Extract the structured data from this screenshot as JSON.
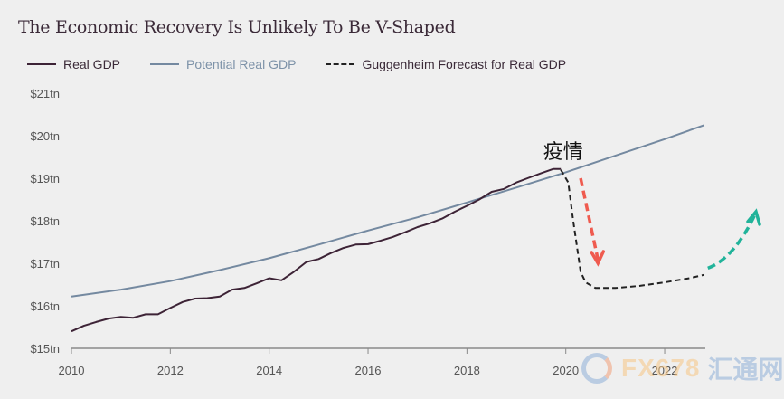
{
  "chart_data": {
    "type": "line",
    "title": "The Economic Recovery Is Unlikely To Be V-Shaped",
    "xlabel": "",
    "ylabel": "",
    "xlim": [
      2010,
      2023.3
    ],
    "ylim": [
      15,
      21
    ],
    "x_ticks": [
      2010,
      2012,
      2014,
      2016,
      2018,
      2020,
      2022
    ],
    "x_tick_labels": [
      "2010",
      "2012",
      "2014",
      "2016",
      "2018",
      "2020",
      "2022"
    ],
    "y_ticks": [
      15,
      16,
      17,
      18,
      19,
      20,
      21
    ],
    "y_tick_labels": [
      "$15tn",
      "$16tn",
      "$17tn",
      "$18tn",
      "$19tn",
      "$20tn",
      "$21tn"
    ],
    "grid": false,
    "legend_position": "top-left",
    "series": [
      {
        "name": "Real GDP",
        "style": "solid",
        "color": "#3d2336",
        "x": [
          2010.0,
          2010.25,
          2010.5,
          2010.75,
          2011.0,
          2011.25,
          2011.5,
          2011.75,
          2012.0,
          2012.25,
          2012.5,
          2012.75,
          2013.0,
          2013.25,
          2013.5,
          2013.75,
          2014.0,
          2014.25,
          2014.5,
          2014.75,
          2015.0,
          2015.25,
          2015.5,
          2015.75,
          2016.0,
          2016.25,
          2016.5,
          2016.75,
          2017.0,
          2017.25,
          2017.5,
          2017.75,
          2018.0,
          2018.25,
          2018.5,
          2018.75,
          2019.0,
          2019.25,
          2019.5,
          2019.75,
          2019.9
        ],
        "values": [
          15.4,
          15.53,
          15.62,
          15.7,
          15.74,
          15.72,
          15.8,
          15.8,
          15.95,
          16.09,
          16.17,
          16.18,
          16.22,
          16.38,
          16.42,
          16.53,
          16.65,
          16.6,
          16.8,
          17.03,
          17.1,
          17.24,
          17.36,
          17.44,
          17.45,
          17.53,
          17.62,
          17.73,
          17.85,
          17.94,
          18.05,
          18.21,
          18.35,
          18.5,
          18.68,
          18.75,
          18.9,
          19.01,
          19.12,
          19.22,
          19.22
        ]
      },
      {
        "name": "Potential Real GDP",
        "style": "solid",
        "color": "#7489a0",
        "x": [
          2010.0,
          2011.0,
          2012.0,
          2013.0,
          2014.0,
          2015.0,
          2016.0,
          2017.0,
          2018.0,
          2019.0,
          2020.0,
          2021.0,
          2022.0,
          2022.8
        ],
        "values": [
          16.22,
          16.38,
          16.58,
          16.84,
          17.12,
          17.44,
          17.77,
          18.08,
          18.43,
          18.78,
          19.14,
          19.53,
          19.92,
          20.25
        ]
      },
      {
        "name": "Guggenheim Forecast for Real GDP",
        "style": "dashed",
        "color": "#222222",
        "x": [
          2019.9,
          2020.05,
          2020.15,
          2020.3,
          2020.4,
          2020.6,
          2021.0,
          2021.5,
          2022.0,
          2022.5,
          2022.8
        ],
        "values": [
          19.2,
          18.9,
          18.0,
          16.8,
          16.55,
          16.42,
          16.42,
          16.47,
          16.55,
          16.65,
          16.73
        ]
      }
    ],
    "annotations": [
      {
        "text": "疫情",
        "x": 2019.8,
        "y": 19.4,
        "color": "#111111"
      },
      {
        "type": "arrow",
        "style": "dashed",
        "color": "#ef5b4f",
        "from": [
          2020.3,
          19.0
        ],
        "to": [
          2020.65,
          17.0
        ],
        "meaning": "decline"
      },
      {
        "type": "arrow",
        "style": "dashed",
        "color": "#21b39a",
        "from": [
          2022.8,
          16.8
        ],
        "to": [
          2023.0,
          17.2
        ],
        "to_end": [
          2023.1,
          17.5
        ],
        "meaning": "recovery"
      }
    ]
  },
  "legend": [
    {
      "label": "Real GDP",
      "color": "#3d2336",
      "text_color": "#3b2a38",
      "style": "solid"
    },
    {
      "label": "Potential Real GDP",
      "color": "#7489a0",
      "text_color": "#7d92a8",
      "style": "solid"
    },
    {
      "label": "Guggenheim Forecast for Real GDP",
      "color": "#222222",
      "text_color": "#3b2a38",
      "style": "dashed"
    }
  ],
  "watermark": {
    "brand": "FX678",
    "cn": "汇通网"
  }
}
